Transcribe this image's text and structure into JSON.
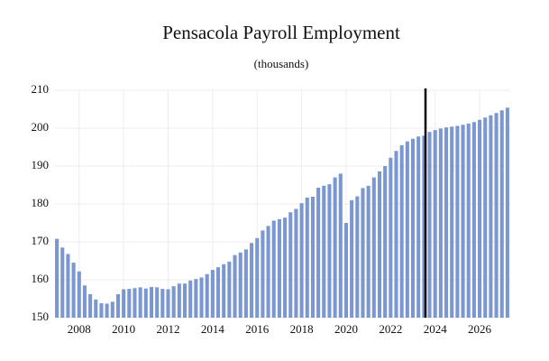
{
  "chart_data": {
    "type": "bar",
    "title": "Pensacola Payroll Employment",
    "subtitle": "(thousands)",
    "categories": [
      null,
      null,
      null,
      null,
      "2008",
      null,
      null,
      null,
      null,
      null,
      null,
      null,
      "2010",
      null,
      null,
      null,
      null,
      null,
      null,
      null,
      "2012",
      null,
      null,
      null,
      null,
      null,
      null,
      null,
      "2014",
      null,
      null,
      null,
      null,
      null,
      null,
      null,
      "2016",
      null,
      null,
      null,
      null,
      null,
      null,
      null,
      "2018",
      null,
      null,
      null,
      null,
      null,
      null,
      null,
      "2020",
      null,
      null,
      null,
      null,
      null,
      null,
      null,
      "2022",
      null,
      null,
      null,
      null,
      null,
      null,
      null,
      "2024",
      null,
      null,
      null,
      null,
      null,
      null,
      null,
      "2026",
      null,
      null,
      null,
      null,
      null
    ],
    "values": [
      170.8,
      168.5,
      166.8,
      164.5,
      162.2,
      158.5,
      156.2,
      154.8,
      153.8,
      153.7,
      154.2,
      156.2,
      157.5,
      157.6,
      157.8,
      158.0,
      157.7,
      158.1,
      158.0,
      157.6,
      157.5,
      158.3,
      159.0,
      159.0,
      159.8,
      160.2,
      160.6,
      161.5,
      162.6,
      163.3,
      164.1,
      164.8,
      166.5,
      167.2,
      168.0,
      169.7,
      171.0,
      173.0,
      174.2,
      175.6,
      176.0,
      176.4,
      177.8,
      178.7,
      180.2,
      181.7,
      181.9,
      184.3,
      184.8,
      185.2,
      187.0,
      188.0,
      175.0,
      181.0,
      182.0,
      184.2,
      184.8,
      187.0,
      188.6,
      190.0,
      192.2,
      194.0,
      195.5,
      196.5,
      197.2,
      197.8,
      198.0,
      199.0,
      199.5,
      199.9,
      200.2,
      200.4,
      200.6,
      200.9,
      201.2,
      201.6,
      202.2,
      202.8,
      203.4,
      204.0,
      204.7,
      205.4
    ],
    "color": "#7b97d1",
    "ylim": [
      150,
      210
    ],
    "yticks": [
      150,
      160,
      170,
      180,
      190,
      200,
      210
    ],
    "grid": true
  }
}
